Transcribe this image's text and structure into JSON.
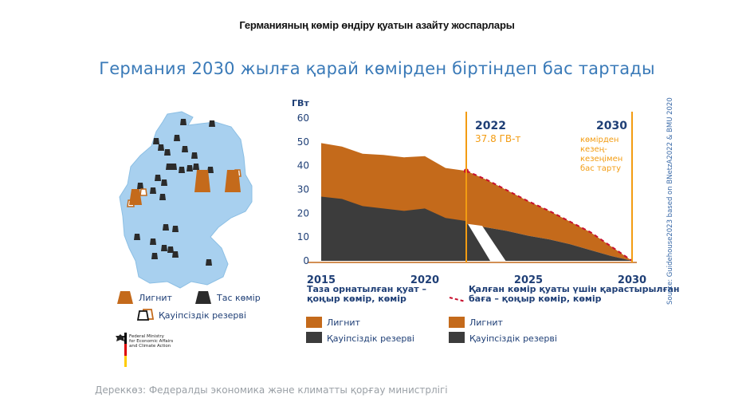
{
  "header": {
    "top_title": "Германияның көмір өндіру қуатын азайту жоспарлары",
    "main_title": "Германия 2030 жылға қарай көмірден біртіндеп бас тартады"
  },
  "map_legend": {
    "lignite": "Лигнит",
    "hard_coal": "Тас көмір",
    "reserve": "Қауіпсіздік резерві"
  },
  "ministry": {
    "line1": "Federal Ministry",
    "line2": "for Economic Affairs",
    "line3": "and Climate Action"
  },
  "chart_data": {
    "type": "area",
    "ylabel": "ГВт",
    "ylim": [
      0,
      60
    ],
    "yticks": [
      "60",
      "50",
      "40",
      "30",
      "20",
      "10",
      "0"
    ],
    "xlim": [
      2015,
      2030
    ],
    "xticks": [
      "2015",
      "2020",
      "2025",
      "2030"
    ],
    "installed": {
      "label": "Таза орнатылған қуат – қоңыр көмір, көмір",
      "x": [
        2015,
        2016,
        2017,
        2018,
        2019,
        2020,
        2021,
        2022
      ],
      "total": [
        49.5,
        48,
        45,
        44.5,
        43.5,
        44,
        39,
        37.8
      ],
      "hard_coal": [
        27,
        26,
        23,
        22,
        21,
        22,
        18,
        16.7
      ]
    },
    "remaining": {
      "label": "Қалған көмір қуаты үшін қарастырылған баға – қоңыр көмір, көмір",
      "x": [
        2022,
        2023,
        2024,
        2025,
        2026,
        2027,
        2028,
        2029,
        2030
      ],
      "total": [
        37.8,
        34,
        29.5,
        25,
        21,
        16.5,
        12,
        6,
        0
      ],
      "hard_coal": [
        15.5,
        14,
        12.5,
        10.5,
        9,
        7,
        4.5,
        2,
        0
      ]
    },
    "annotations": {
      "year_2022": "2022",
      "value_2022": "37.8 ГВ-т",
      "year_2030": "2030",
      "phase_out": [
        "көмірден",
        "кезең-",
        "кезеңімен",
        "бас тарту"
      ]
    },
    "legend": {
      "lignite": "Лигнит",
      "reserve": "Қауіпсіздік резервi",
      "lignite_2": "Лигнит",
      "reserve_2": "Қауіпсіздік резервi"
    },
    "colors": {
      "lignite": "#c46a1b",
      "hard_coal": "#3c3c3c",
      "accent": "#f39c12",
      "dashed": "#c8102e",
      "axis_text": "#1f3f76",
      "map": "#a8d0ef"
    }
  },
  "source_vertical": "Source: Guidehouse2023 based on BNetzA2022 & BMU 2020",
  "footer_source": "Дереккөз: Федералды экономика және климатты қорғау министрлігі"
}
